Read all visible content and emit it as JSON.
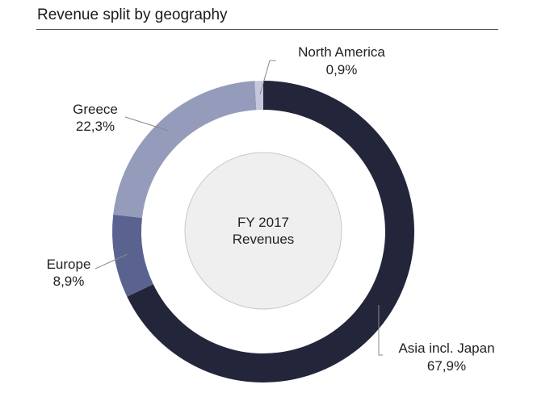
{
  "chart_data": {
    "type": "pie",
    "variant": "donut",
    "title": "Revenue split by geography",
    "center_label": [
      "FY 2017",
      "Revenues"
    ],
    "unit": "%",
    "slices": [
      {
        "label": "Asia incl. Japan",
        "value": 67.9,
        "display": "67,9%",
        "color": "#23263a"
      },
      {
        "label": "Europe",
        "value": 8.9,
        "display": "8,9%",
        "color": "#5a6290"
      },
      {
        "label": "Greece",
        "value": 22.3,
        "display": "22,3%",
        "color": "#959bbb"
      },
      {
        "label": "North America",
        "value": 0.9,
        "display": "0,9%",
        "color": "#c5c8dc"
      }
    ],
    "start": "top",
    "direction": "clockwise",
    "legend": "none"
  }
}
